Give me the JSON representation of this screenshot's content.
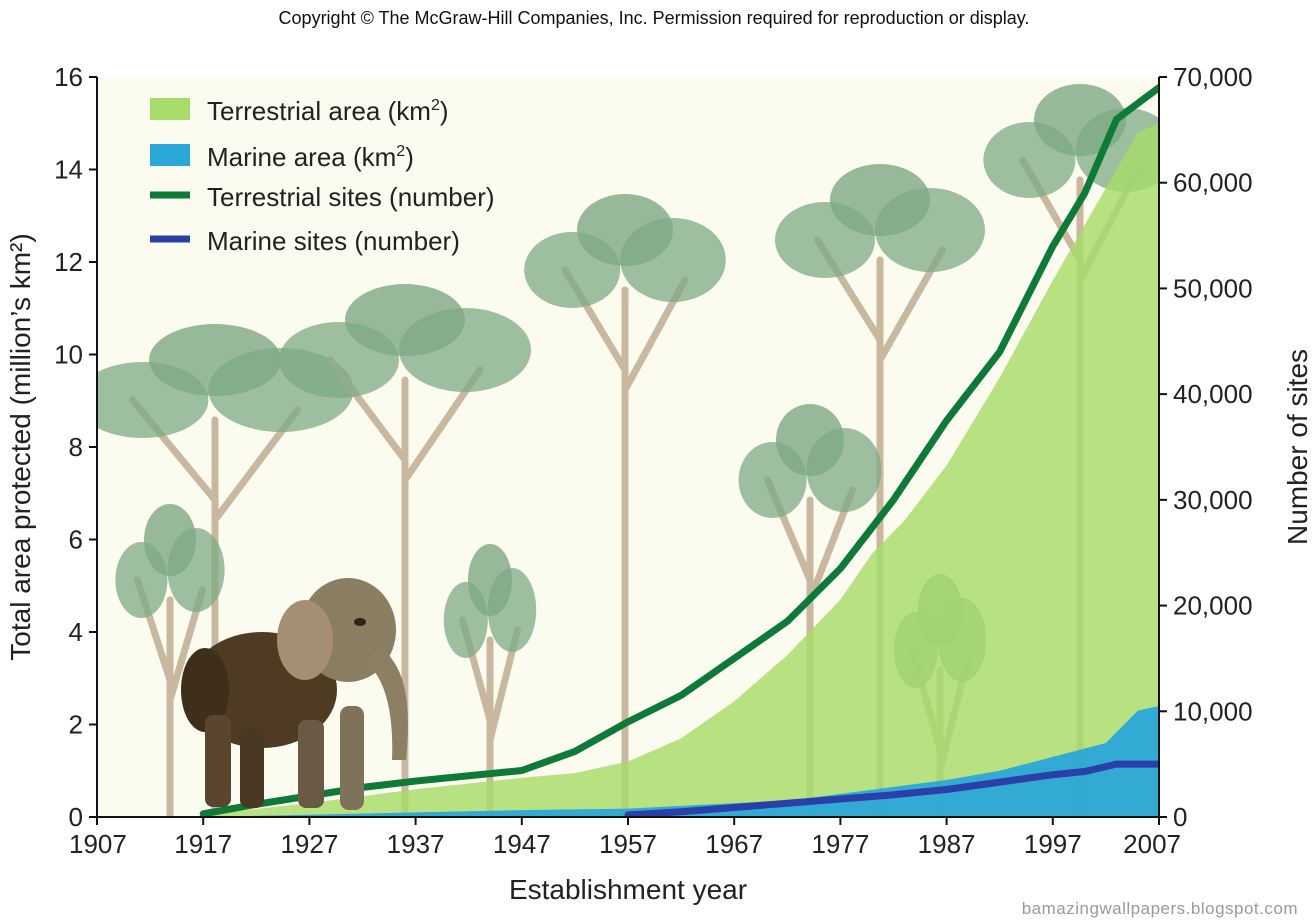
{
  "header": {
    "copyright": "Copyright © The McGraw-Hill Companies, Inc.  Permission required for reproduction or display."
  },
  "watermark": "bamazingwallpapers.blogspot.com",
  "colors": {
    "terrestrial_area": "#a8dc6a",
    "marine_area": "#2aa6d8",
    "terrestrial_sites": "#0d7a38",
    "marine_sites": "#2a3fa8",
    "background": "#fbfbef",
    "trees": "#7ea984",
    "trunks": "#c9b79f"
  },
  "chart_data": {
    "type": "area",
    "title": "",
    "xlabel": "Establishment year",
    "ylabel_left": "Total area protected (million’s km²)",
    "ylabel_right": "Number of sites",
    "xlim": [
      1907,
      2007
    ],
    "ylim_left": [
      0,
      16
    ],
    "ylim_right": [
      0,
      70000
    ],
    "x_ticks": [
      "1907",
      "1917",
      "1927",
      "1937",
      "1947",
      "1957",
      "1967",
      "1977",
      "1987",
      "1997",
      "2007"
    ],
    "y_ticks_left": [
      "0",
      "2",
      "4",
      "6",
      "8",
      "10",
      "12",
      "14",
      "16"
    ],
    "y_ticks_right": [
      "0",
      "10,000",
      "20,000",
      "30,000",
      "40,000",
      "50,000",
      "60,000",
      "70,000"
    ],
    "legend": [
      {
        "key": "terrestrial_area",
        "label": "Terrestrial area (km",
        "sup": "2",
        "tail": ")",
        "kind": "area"
      },
      {
        "key": "marine_area",
        "label": "Marine area (km",
        "sup": "2",
        "tail": ")",
        "kind": "area"
      },
      {
        "key": "terrestrial_sites",
        "label": "Terrestrial sites (number)",
        "sup": "",
        "tail": "",
        "kind": "line"
      },
      {
        "key": "marine_sites",
        "label": "Marine sites  (number)",
        "sup": "",
        "tail": "",
        "kind": "line"
      }
    ],
    "series": [
      {
        "name": "Terrestrial area (km²)",
        "axis": "left",
        "kind": "area",
        "x": [
          1917,
          1927,
          1937,
          1947,
          1952,
          1957,
          1962,
          1967,
          1972,
          1977,
          1980,
          1983,
          1987,
          1992,
          1997,
          2002,
          2005,
          2007
        ],
        "values": [
          0.05,
          0.3,
          0.6,
          0.85,
          0.95,
          1.2,
          1.7,
          2.5,
          3.5,
          4.7,
          5.7,
          6.4,
          7.6,
          9.5,
          11.6,
          13.6,
          14.8,
          15.0
        ]
      },
      {
        "name": "Marine area (km²)",
        "axis": "left",
        "kind": "area",
        "x": [
          1917,
          1927,
          1937,
          1947,
          1957,
          1967,
          1972,
          1977,
          1987,
          1992,
          1997,
          2002,
          2005,
          2007
        ],
        "values": [
          0.0,
          0.05,
          0.1,
          0.15,
          0.18,
          0.3,
          0.35,
          0.5,
          0.8,
          1.0,
          1.3,
          1.6,
          2.3,
          2.4
        ]
      },
      {
        "name": "Terrestrial sites (number)",
        "axis": "right",
        "kind": "line",
        "x": [
          1917,
          1922,
          1927,
          1932,
          1937,
          1942,
          1947,
          1952,
          1957,
          1962,
          1967,
          1972,
          1977,
          1982,
          1987,
          1992,
          1997,
          2000,
          2003,
          2007
        ],
        "values": [
          300,
          1200,
          2000,
          2800,
          3400,
          3900,
          4400,
          6200,
          9000,
          11500,
          15000,
          18500,
          23500,
          30000,
          37500,
          44000,
          54000,
          59000,
          66000,
          69000
        ]
      },
      {
        "name": "Marine sites (number)",
        "axis": "right",
        "kind": "line",
        "x": [
          1957,
          1962,
          1967,
          1972,
          1977,
          1982,
          1987,
          1992,
          1997,
          2000,
          2003,
          2007
        ],
        "values": [
          200,
          500,
          900,
          1300,
          1700,
          2100,
          2600,
          3300,
          4000,
          4300,
          5000,
          5000
        ]
      }
    ]
  }
}
